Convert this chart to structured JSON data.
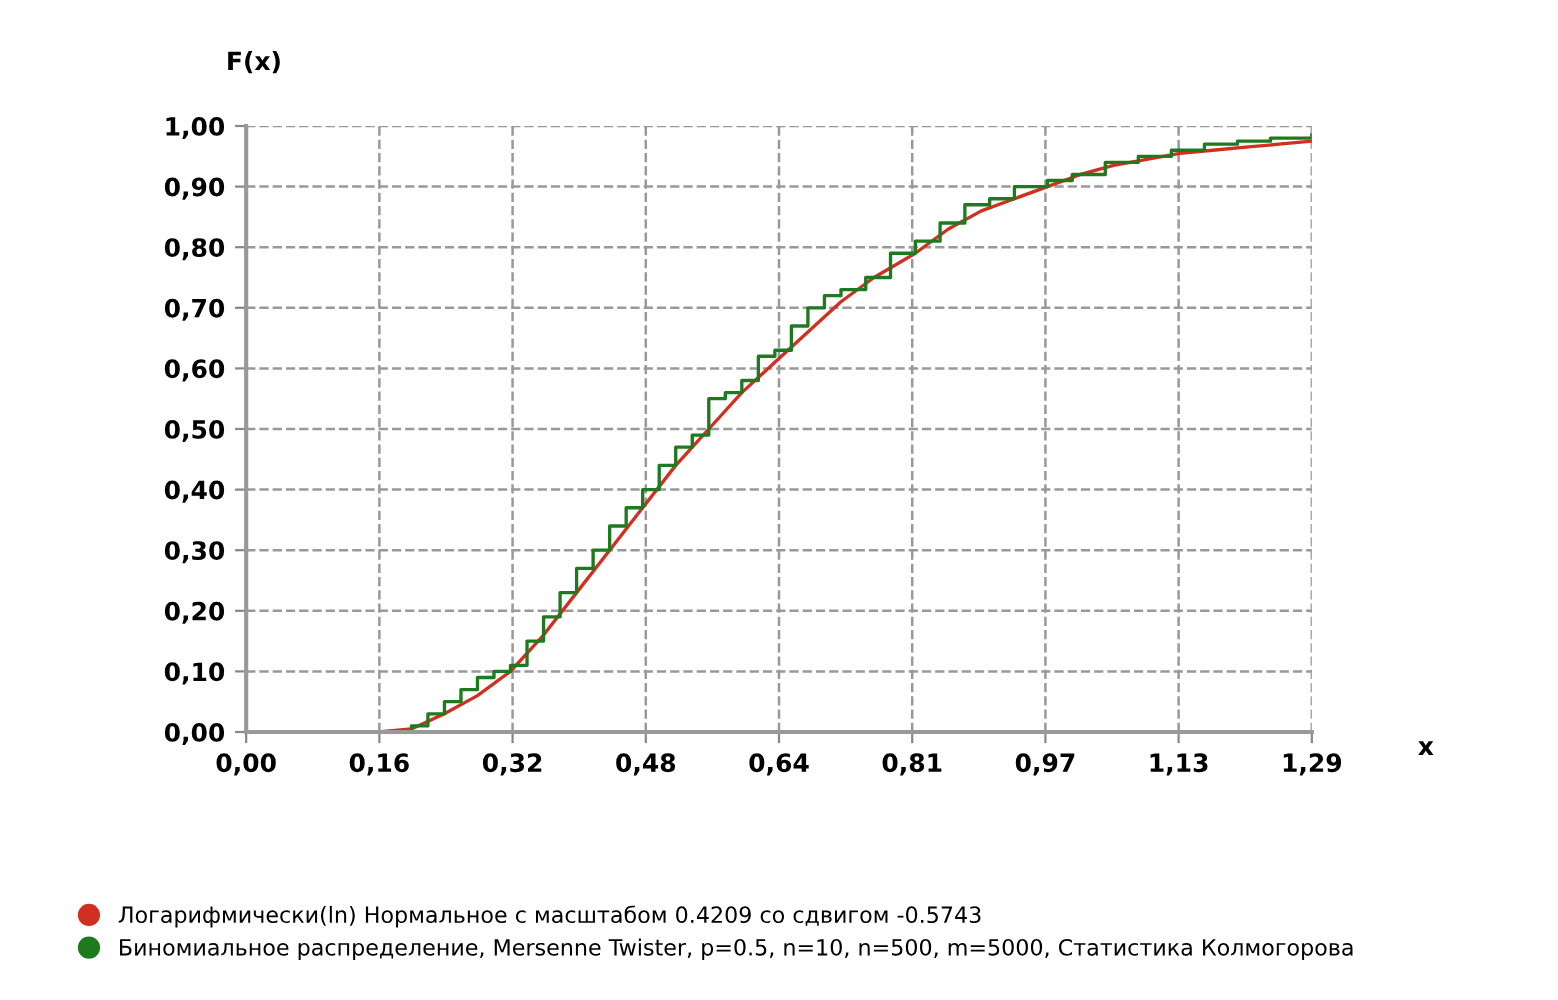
{
  "chart_data": {
    "type": "line",
    "xlabel": "x",
    "ylabel": "F(x)",
    "xlim": [
      0,
      1.29
    ],
    "ylim": [
      0,
      1.0
    ],
    "xticks": [
      {
        "value": 0,
        "label": "0,00"
      },
      {
        "value": 0.16125,
        "label": "0,16"
      },
      {
        "value": 0.3225,
        "label": "0,32"
      },
      {
        "value": 0.48375,
        "label": "0,48"
      },
      {
        "value": 0.645,
        "label": "0,64"
      },
      {
        "value": 0.80625,
        "label": "0,81"
      },
      {
        "value": 0.9675,
        "label": "0,97"
      },
      {
        "value": 1.12875,
        "label": "1,13"
      },
      {
        "value": 1.29,
        "label": "1,29"
      }
    ],
    "yticks": [
      {
        "value": 0,
        "label": "0,00"
      },
      {
        "value": 0.1,
        "label": "0,10"
      },
      {
        "value": 0.2,
        "label": "0,20"
      },
      {
        "value": 0.3,
        "label": "0,30"
      },
      {
        "value": 0.4,
        "label": "0,40"
      },
      {
        "value": 0.5,
        "label": "0,50"
      },
      {
        "value": 0.6,
        "label": "0,60"
      },
      {
        "value": 0.7,
        "label": "0,70"
      },
      {
        "value": 0.8,
        "label": "0,80"
      },
      {
        "value": 0.9,
        "label": "0,90"
      },
      {
        "value": 1.0,
        "label": "1,00"
      }
    ],
    "grid": true,
    "legend": "bottom",
    "marker": "none",
    "line_style": "solid",
    "series": [
      {
        "name": "Логарифмически(ln) Нормальное с масштабом 0.4209 со сдвигом -0.5743",
        "color": "#d03020",
        "x": [
          0,
          0.16,
          0.2,
          0.24,
          0.28,
          0.32,
          0.36,
          0.4,
          0.44,
          0.48,
          0.52,
          0.56,
          0.6,
          0.64,
          0.68,
          0.72,
          0.76,
          0.81,
          0.85,
          0.89,
          0.93,
          0.97,
          1.01,
          1.05,
          1.09,
          1.13,
          1.17,
          1.21,
          1.25,
          1.29
        ],
        "values": [
          0,
          0,
          0.005,
          0.03,
          0.06,
          0.1,
          0.16,
          0.23,
          0.3,
          0.37,
          0.44,
          0.5,
          0.56,
          0.61,
          0.66,
          0.71,
          0.75,
          0.79,
          0.83,
          0.86,
          0.88,
          0.9,
          0.92,
          0.935,
          0.945,
          0.955,
          0.96,
          0.965,
          0.97,
          0.975
        ]
      },
      {
        "name": "Биномиальное распределение, Mersenne Twister, p=0.5, n=10, n=500, m=5000, Статистика Колмогорова",
        "color": "#1e7a1e",
        "type": "step",
        "x": [
          0,
          0.17,
          0.2,
          0.22,
          0.24,
          0.26,
          0.28,
          0.3,
          0.32,
          0.34,
          0.36,
          0.38,
          0.4,
          0.42,
          0.44,
          0.46,
          0.48,
          0.5,
          0.52,
          0.54,
          0.56,
          0.58,
          0.6,
          0.62,
          0.64,
          0.66,
          0.68,
          0.7,
          0.72,
          0.75,
          0.78,
          0.81,
          0.84,
          0.87,
          0.9,
          0.93,
          0.97,
          1.0,
          1.04,
          1.08,
          1.12,
          1.16,
          1.2,
          1.24,
          1.29
        ],
        "values": [
          0,
          0,
          0.01,
          0.03,
          0.05,
          0.07,
          0.09,
          0.1,
          0.11,
          0.15,
          0.19,
          0.23,
          0.27,
          0.3,
          0.34,
          0.37,
          0.4,
          0.44,
          0.47,
          0.49,
          0.55,
          0.56,
          0.58,
          0.62,
          0.63,
          0.67,
          0.7,
          0.72,
          0.73,
          0.75,
          0.79,
          0.81,
          0.84,
          0.87,
          0.88,
          0.9,
          0.91,
          0.92,
          0.94,
          0.95,
          0.96,
          0.97,
          0.975,
          0.98,
          0.985
        ]
      }
    ]
  }
}
